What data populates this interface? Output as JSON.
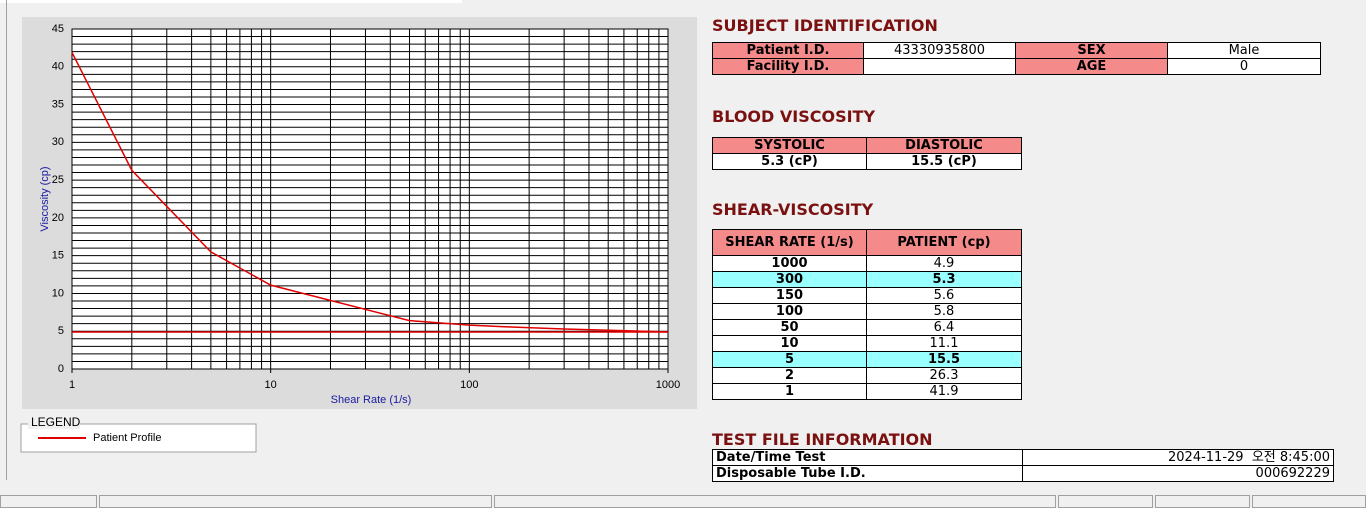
{
  "chart_data": {
    "type": "line",
    "xlabel": "Shear Rate (1/s)",
    "ylabel": "Viscosity (cp)",
    "xlim": [
      1,
      1000
    ],
    "xticks": [
      1,
      10,
      100,
      1000
    ],
    "xlog": true,
    "ylim": [
      0,
      45
    ],
    "yticks": [
      0,
      5,
      10,
      15,
      20,
      25,
      30,
      35,
      40,
      45
    ],
    "grid": true,
    "legend_title": "LEGEND",
    "series": [
      {
        "name": "Patient Profile",
        "color": "#e00000",
        "x": [
          1,
          2,
          5,
          10,
          50,
          100,
          150,
          300,
          1000
        ],
        "values": [
          41.9,
          26.3,
          15.5,
          11.1,
          6.4,
          5.8,
          5.6,
          5.3,
          4.9
        ]
      },
      {
        "color": "#e00000",
        "x": [
          1,
          1000
        ],
        "values": [
          4.9,
          4.9
        ]
      }
    ]
  },
  "subject_identification": {
    "title": "SUBJECT IDENTIFICATION",
    "rows": [
      [
        {
          "label": "Patient I.D.",
          "value": "43330935800"
        },
        {
          "label": "SEX",
          "value": "Male"
        }
      ],
      [
        {
          "label": "Facility I.D."
        },
        {
          "label": "AGE",
          "value": "0"
        }
      ]
    ]
  },
  "blood_viscosity": {
    "title": "BLOOD VISCOSITY",
    "headers": [
      "SYSTOLIC",
      "DIASTOLIC"
    ],
    "values": [
      "5.3 (cP)",
      "15.5 (cP)"
    ]
  },
  "shear_viscosity": {
    "title": "SHEAR-VISCOSITY",
    "headers": [
      "SHEAR RATE (1/s)",
      "PATIENT (cp)"
    ],
    "rows": [
      {
        "rate": "1000",
        "patient": "4.9"
      },
      {
        "rate": "300",
        "patient": "5.3",
        "highlight": true
      },
      {
        "rate": "150",
        "patient": "5.6"
      },
      {
        "rate": "100",
        "patient": "5.8"
      },
      {
        "rate": "50",
        "patient": "6.4"
      },
      {
        "rate": "10",
        "patient": "11.1"
      },
      {
        "rate": "5",
        "patient": "15.5",
        "highlight": true
      },
      {
        "rate": "2",
        "patient": "26.3"
      },
      {
        "rate": "1",
        "patient": "41.9"
      }
    ]
  },
  "test_file_information": {
    "title": "TEST FILE INFORMATION",
    "rows": [
      {
        "label": "Date/Time Test",
        "value": "2024-11-29  오전 8:45:00"
      },
      {
        "label": "Disposable Tube I.D.",
        "value": "000692229"
      }
    ]
  }
}
